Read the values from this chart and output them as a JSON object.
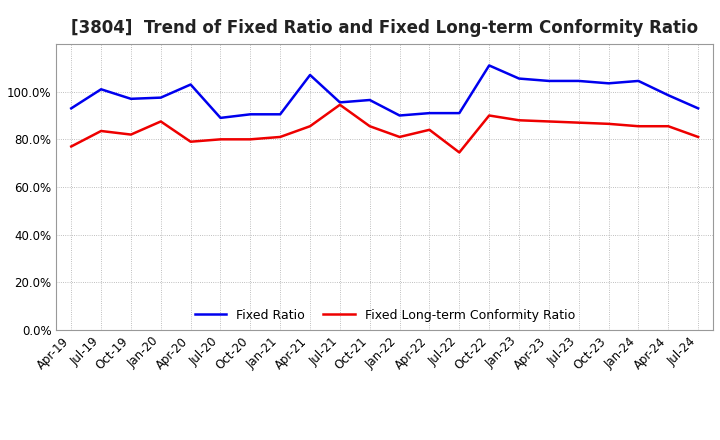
{
  "title": "[3804]  Trend of Fixed Ratio and Fixed Long-term Conformity Ratio",
  "x_labels": [
    "Apr-19",
    "Jul-19",
    "Oct-19",
    "Jan-20",
    "Apr-20",
    "Jul-20",
    "Oct-20",
    "Jan-21",
    "Apr-21",
    "Jul-21",
    "Oct-21",
    "Jan-22",
    "Apr-22",
    "Jul-22",
    "Oct-22",
    "Jan-23",
    "Apr-23",
    "Jul-23",
    "Oct-23",
    "Jan-24",
    "Apr-24",
    "Jul-24"
  ],
  "fixed_ratio_values": [
    0.93,
    1.01,
    0.97,
    0.975,
    1.03,
    0.89,
    0.905,
    0.905,
    1.07,
    0.955,
    0.965,
    0.9,
    0.91,
    0.91,
    1.11,
    1.055,
    1.045,
    1.045,
    1.035,
    1.045,
    0.985,
    0.93
  ],
  "fixed_lt_ratio_values": [
    0.77,
    0.835,
    0.82,
    0.875,
    0.79,
    0.8,
    0.8,
    0.81,
    0.855,
    0.945,
    0.855,
    0.81,
    0.84,
    0.745,
    0.9,
    0.88,
    0.875,
    0.87,
    0.865,
    0.855,
    0.855,
    0.81
  ],
  "fixed_ratio_color": "#0000ee",
  "fixed_lt_ratio_color": "#ee0000",
  "ylim_min": 0.0,
  "ylim_max": 1.2,
  "ytick_vals": [
    0.0,
    0.2,
    0.4,
    0.6,
    0.8,
    1.0
  ],
  "legend_fixed": "Fixed Ratio",
  "legend_fixed_lt": "Fixed Long-term Conformity Ratio",
  "bg_color": "#ffffff",
  "grid_color": "#aaaaaa",
  "title_fontsize": 12,
  "tick_fontsize": 8.5,
  "legend_fontsize": 9,
  "line_width": 1.8
}
